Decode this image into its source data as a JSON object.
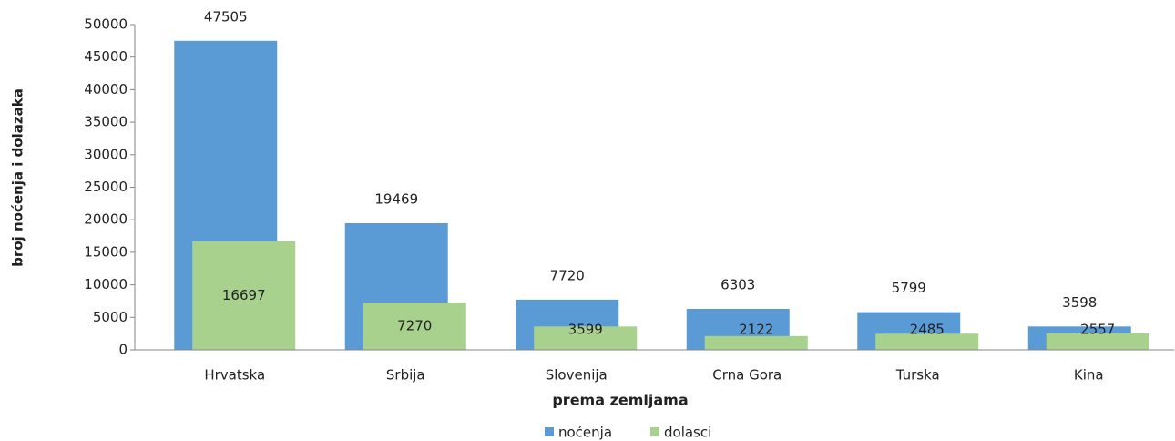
{
  "chart_data": {
    "type": "bar",
    "y_label": "broj noćenja i dolazaka",
    "x_label": "prema zemljama",
    "categories": [
      "Hrvatska",
      "Srbija",
      "Slovenija",
      "Crna Gora",
      "Turska",
      "Kina"
    ],
    "series": [
      {
        "name": "noćenja",
        "color": "#5b9bd5",
        "values": [
          47505,
          19469,
          7720,
          6303,
          5799,
          3598
        ]
      },
      {
        "name": "dolasci",
        "color": "#a9d18e",
        "values": [
          16697,
          7270,
          3599,
          2122,
          2485,
          2557
        ]
      }
    ],
    "ylim": [
      0,
      50000
    ],
    "yticks": [
      0,
      5000,
      10000,
      15000,
      20000,
      25000,
      30000,
      35000,
      40000,
      45000,
      50000
    ],
    "legend": "bottom"
  }
}
